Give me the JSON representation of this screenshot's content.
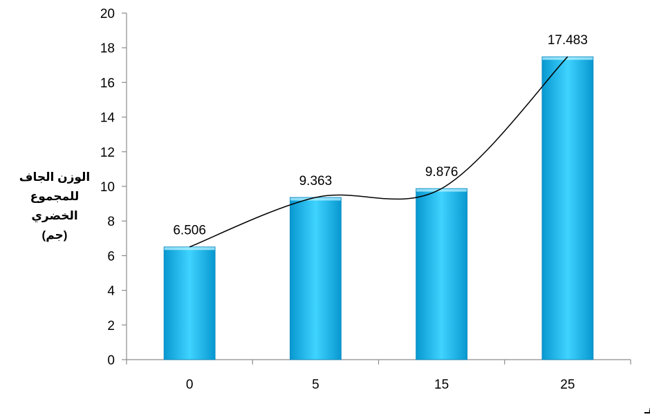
{
  "chart_data": {
    "type": "bar",
    "title": "",
    "xlabel": "مستويات إضافة المادة العضوية (سماد الأغنام) طن/هـ",
    "ylabel_lines": [
      "الوزن الجاف",
      "للمجموع",
      "الخضري",
      "(جم)"
    ],
    "categories": [
      "0",
      "5",
      "15",
      "25"
    ],
    "values": [
      6.506,
      9.363,
      9.876,
      17.483
    ],
    "value_labels": [
      "6.506",
      "9.363",
      "9.876",
      "17.483"
    ],
    "ylim": [
      0,
      20
    ],
    "yticks": [
      0,
      2,
      4,
      6,
      8,
      10,
      12,
      14,
      16,
      18,
      20
    ],
    "grid": false,
    "legend": false,
    "trendline": true,
    "colors": {
      "bar_top": "#3fd3ff",
      "bar_mid": "#12b7ee",
      "bar_bottom": "#0898d0",
      "bar_edge": "#0a86bd",
      "trend": "#000000"
    }
  }
}
